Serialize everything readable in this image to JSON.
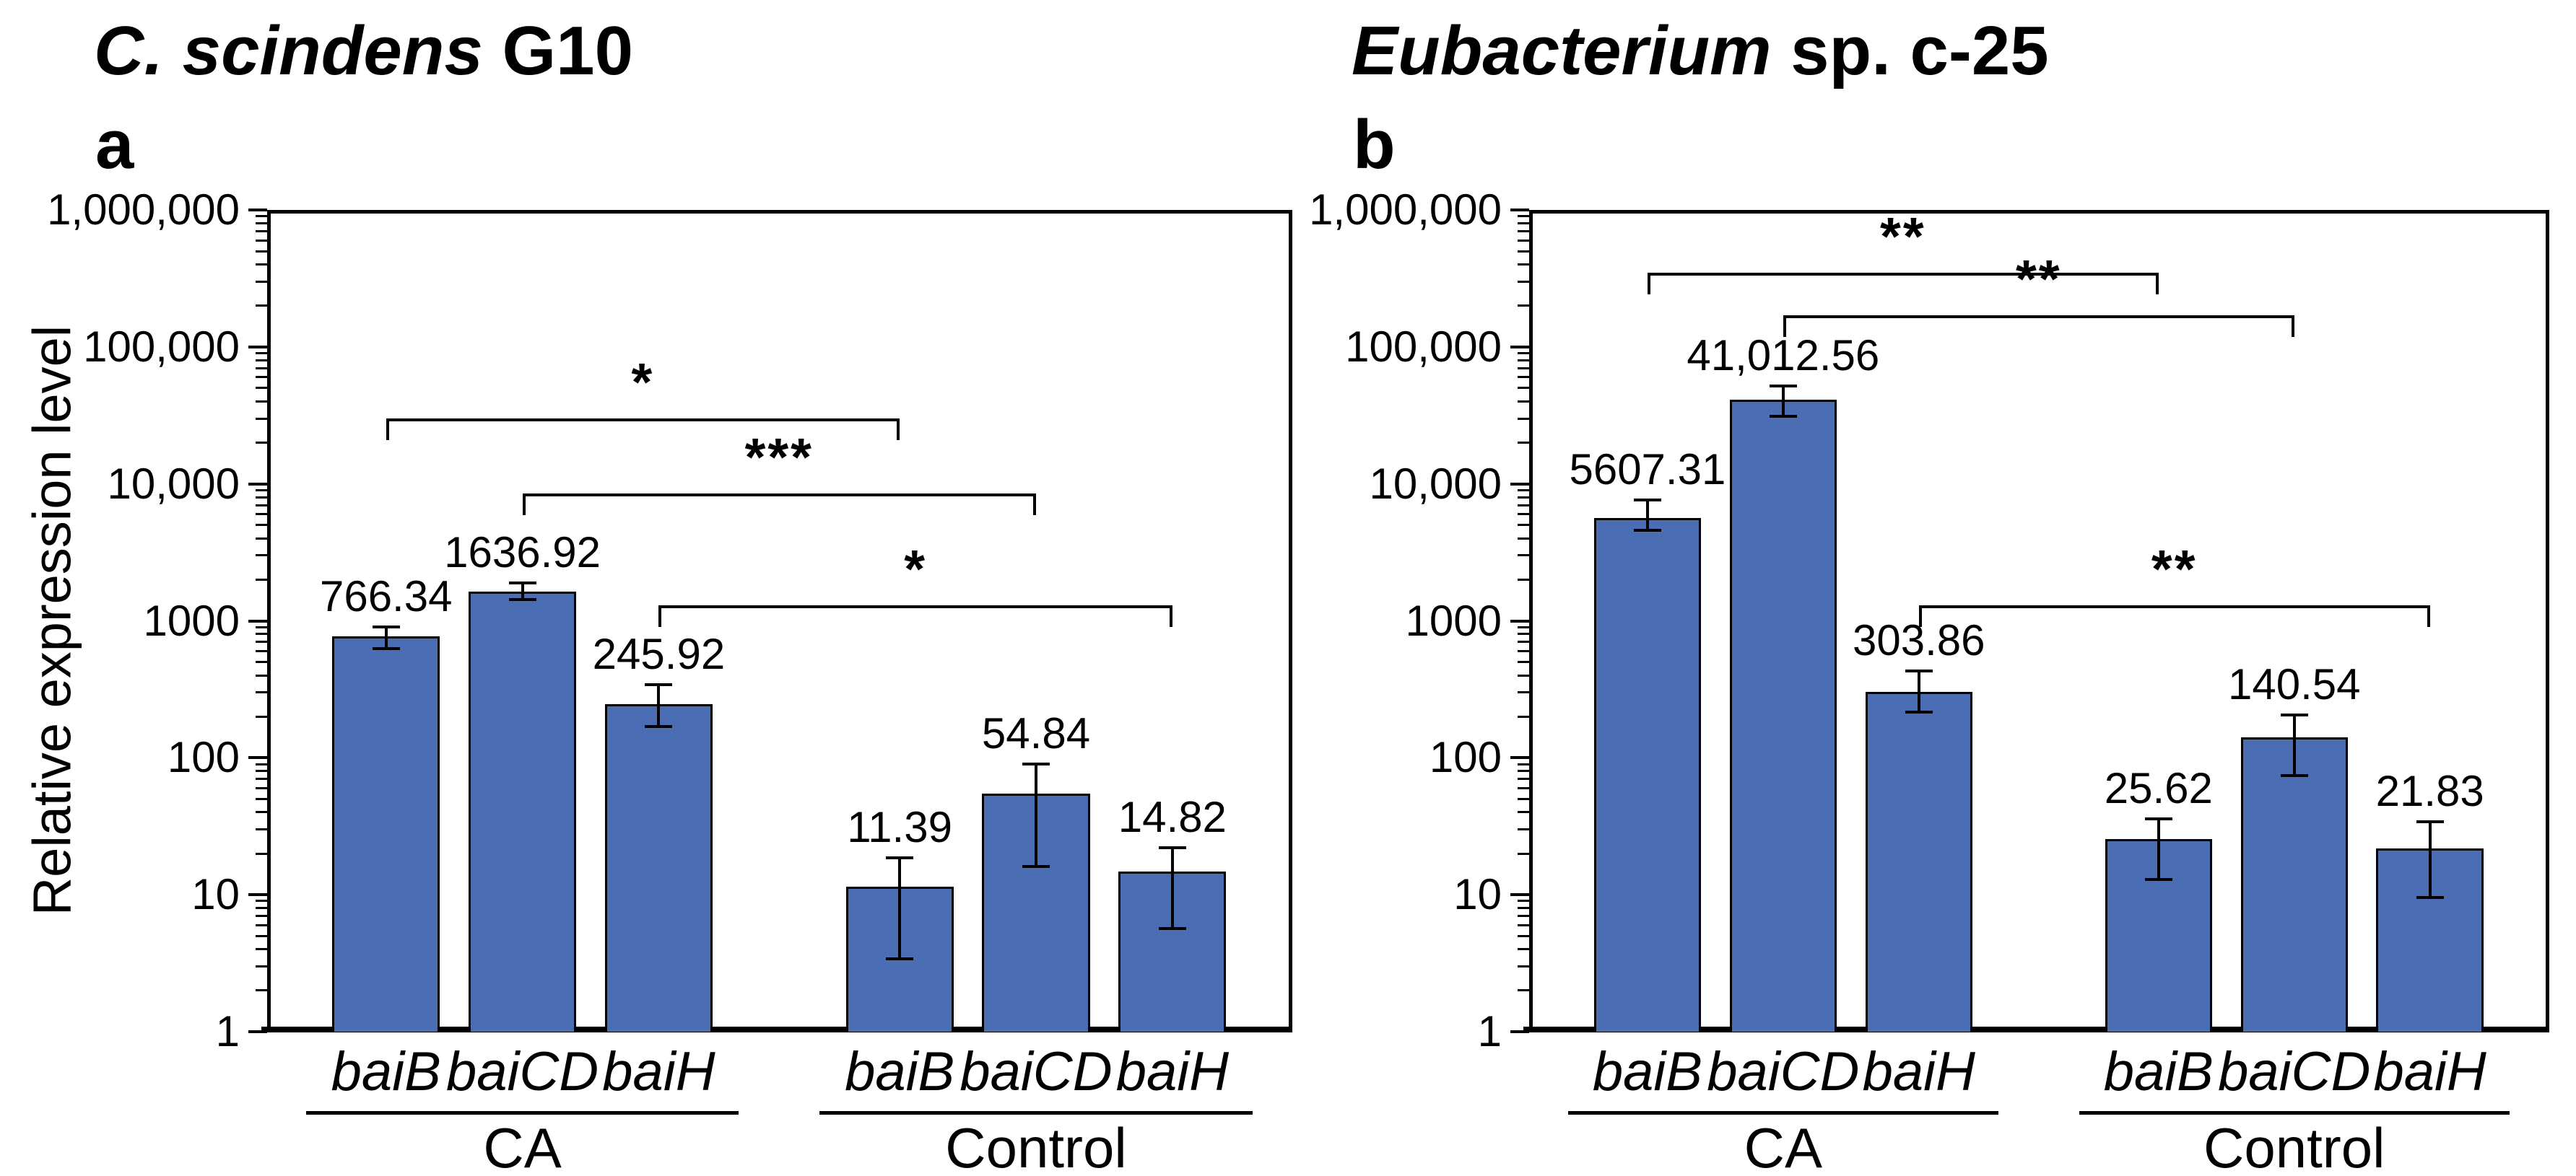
{
  "figure_titles": [
    {
      "italic": "C. scindens",
      "rest": " G10",
      "panel_letter": "a"
    },
    {
      "italic": "Eubacterium",
      "rest": " sp. c-25",
      "panel_letter": "b"
    }
  ],
  "y_axis_title": "Relative expression level",
  "style": {
    "bar_fill": "#4a6db4",
    "bar_border": "#000000",
    "axis_color": "#000000",
    "background": "#ffffff"
  },
  "chart_data": [
    {
      "type": "bar",
      "panel": "a",
      "title": "C. scindens G10",
      "ylabel": "Relative expression level",
      "y_scale": "log10",
      "ylim": [
        1,
        1000000
      ],
      "y_tick_labels": [
        "1,000,000",
        "100,000",
        "10,000",
        "1000",
        "100",
        "10",
        "1"
      ],
      "grid": false,
      "legend": "none",
      "x_group_labels": [
        "CA",
        "Control"
      ],
      "categories": [
        "baiB",
        "baiCD",
        "baiH",
        "baiB",
        "baiCD",
        "baiH"
      ],
      "values": [
        766.34,
        1636.92,
        245.92,
        11.39,
        54.84,
        14.82
      ],
      "value_labels": [
        "766.34",
        "1636.92",
        "245.92",
        "11.39",
        "54.84",
        "14.82"
      ],
      "error_upper": [
        900,
        1900,
        340,
        18.5,
        90,
        22
      ],
      "error_lower": [
        630,
        1430,
        170,
        3.4,
        16,
        5.7
      ],
      "significance_brackets": [
        {
          "from_bar": 0,
          "to_bar": 3,
          "label": "*",
          "y": 30000
        },
        {
          "from_bar": 1,
          "to_bar": 4,
          "label": "***",
          "y": 8500
        },
        {
          "from_bar": 2,
          "to_bar": 5,
          "label": "*",
          "y": 1300
        }
      ]
    },
    {
      "type": "bar",
      "panel": "b",
      "title": "Eubacterium sp. c-25",
      "ylabel": "",
      "y_scale": "log10",
      "ylim": [
        1,
        1000000
      ],
      "y_tick_labels": [
        "1,000,000",
        "100,000",
        "10,000",
        "1000",
        "100",
        "10",
        "1"
      ],
      "grid": false,
      "legend": "none",
      "x_group_labels": [
        "CA",
        "Control"
      ],
      "categories": [
        "baiB",
        "baiCD",
        "baiH",
        "baiB",
        "baiCD",
        "baiH"
      ],
      "values": [
        5607.31,
        41012.56,
        303.86,
        25.62,
        140.54,
        21.83
      ],
      "value_labels": [
        "5607.31",
        "41,012.56",
        "303.86",
        "25.62",
        "140.54",
        "21.83"
      ],
      "error_upper": [
        7600,
        52000,
        430,
        36,
        205,
        34
      ],
      "error_lower": [
        4600,
        31000,
        215,
        13,
        74,
        9.5
      ],
      "significance_brackets": [
        {
          "from_bar": 0,
          "to_bar": 3,
          "label": "**",
          "y": 350000
        },
        {
          "from_bar": 1,
          "to_bar": 4,
          "label": "**",
          "y": 170000
        },
        {
          "from_bar": 2,
          "to_bar": 5,
          "label": "**",
          "y": 1300
        }
      ]
    }
  ]
}
